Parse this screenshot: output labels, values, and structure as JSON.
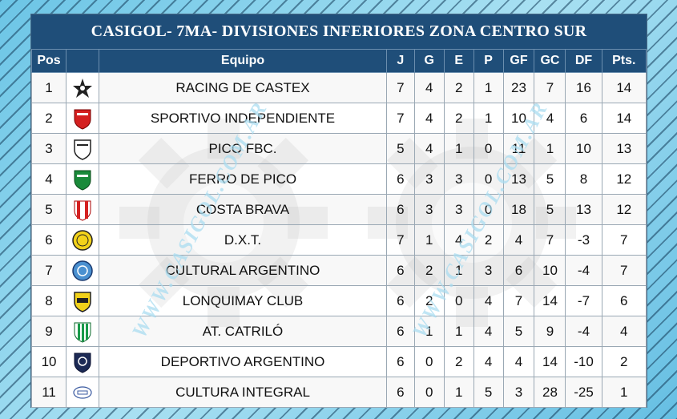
{
  "title": "CASIGOL- 7MA- DIVISIONES INFERIORES ZONA CENTRO SUR",
  "watermark": "WWW.CASIGOL.COM.AR",
  "headers": {
    "pos": "Pos",
    "crest": "",
    "team": "Equipo",
    "j": "J",
    "g": "G",
    "e": "E",
    "p": "P",
    "gf": "GF",
    "gc": "GC",
    "df": "DF",
    "pts": "Pts."
  },
  "rows": [
    {
      "pos": "1",
      "team": "RACING DE CASTEX",
      "j": "7",
      "g": "4",
      "e": "2",
      "p": "1",
      "gf": "23",
      "gc": "7",
      "df": "16",
      "pts": "14",
      "crest": "star-crest-icon"
    },
    {
      "pos": "2",
      "team": "SPORTIVO INDEPENDIENTE",
      "j": "7",
      "g": "4",
      "e": "2",
      "p": "1",
      "gf": "10",
      "gc": "4",
      "df": "6",
      "pts": "14",
      "crest": "red-shield-crest-icon"
    },
    {
      "pos": "3",
      "team": "PICO FBC.",
      "j": "5",
      "g": "4",
      "e": "1",
      "p": "0",
      "gf": "11",
      "gc": "1",
      "df": "10",
      "pts": "13",
      "crest": "white-shield-crest-icon"
    },
    {
      "pos": "4",
      "team": "FERRO DE PICO",
      "j": "6",
      "g": "3",
      "e": "3",
      "p": "0",
      "gf": "13",
      "gc": "5",
      "df": "8",
      "pts": "12",
      "crest": "green-shield-crest-icon"
    },
    {
      "pos": "5",
      "team": "COSTA BRAVA",
      "j": "6",
      "g": "3",
      "e": "3",
      "p": "0",
      "gf": "18",
      "gc": "5",
      "df": "13",
      "pts": "12",
      "crest": "red-stripes-crest-icon"
    },
    {
      "pos": "6",
      "team": "D.X.T.",
      "j": "7",
      "g": "1",
      "e": "4",
      "p": "2",
      "gf": "4",
      "gc": "7",
      "df": "-3",
      "pts": "7",
      "crest": "yellow-circle-crest-icon"
    },
    {
      "pos": "7",
      "team": "CULTURAL ARGENTINO",
      "j": "6",
      "g": "2",
      "e": "1",
      "p": "3",
      "gf": "6",
      "gc": "10",
      "df": "-4",
      "pts": "7",
      "crest": "blue-circle-crest-icon"
    },
    {
      "pos": "8",
      "team": "LONQUIMAY CLUB",
      "j": "6",
      "g": "2",
      "e": "0",
      "p": "4",
      "gf": "7",
      "gc": "14",
      "df": "-7",
      "pts": "6",
      "crest": "yellow-shield-crest-icon"
    },
    {
      "pos": "9",
      "team": "AT. CATRILÓ",
      "j": "6",
      "g": "1",
      "e": "1",
      "p": "4",
      "gf": "5",
      "gc": "9",
      "df": "-4",
      "pts": "4",
      "crest": "green-stripes-crest-icon"
    },
    {
      "pos": "10",
      "team": "DEPORTIVO ARGENTINO",
      "j": "6",
      "g": "0",
      "e": "2",
      "p": "4",
      "gf": "4",
      "gc": "14",
      "df": "-10",
      "pts": "2",
      "crest": "navy-shield-crest-icon"
    },
    {
      "pos": "11",
      "team": "CULTURA INTEGRAL",
      "j": "6",
      "g": "0",
      "e": "1",
      "p": "5",
      "gf": "3",
      "gc": "28",
      "df": "-25",
      "pts": "1",
      "crest": "small-white-crest-icon"
    }
  ]
}
